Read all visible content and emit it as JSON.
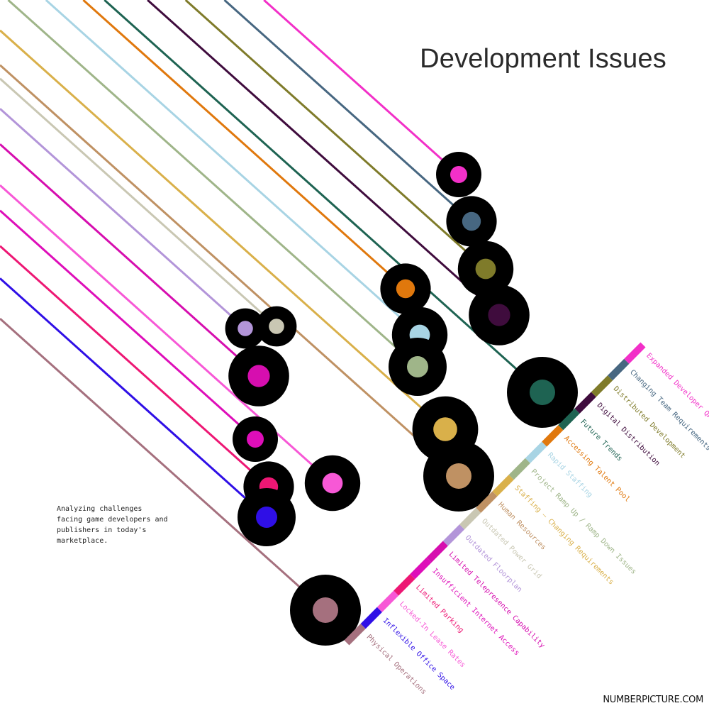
{
  "chart_data": {
    "type": "scatter",
    "title": "Development Issues",
    "subtitle": "Analyzing challenges facing game developers and publishers in today's marketplace.",
    "series": [
      {
        "name": "Expanded Developer QA",
        "color": "#f230c8",
        "magnitude": 0.5
      },
      {
        "name": "Changing Team Requirements",
        "color": "#476781",
        "magnitude": 0.6
      },
      {
        "name": "Distributed Development",
        "color": "#7f7b2a",
        "magnitude": 0.7
      },
      {
        "name": "Digital Distribution",
        "color": "#3f0c3d",
        "magnitude": 0.8
      },
      {
        "name": "Future Trends",
        "color": "#1e6352",
        "magnitude": 1.0
      },
      {
        "name": "Accessing Talent Pool",
        "color": "#e0780d",
        "magnitude": 0.6
      },
      {
        "name": "Rapid Staffing",
        "color": "#a8d4e4",
        "magnitude": 0.7
      },
      {
        "name": "Project Ramp Up / Ramp Down Issues",
        "color": "#9fb589",
        "magnitude": 0.75
      },
      {
        "name": "Staffing – Changing Requirements",
        "color": "#d9b04a",
        "magnitude": 0.9
      },
      {
        "name": "Human Resources",
        "color": "#bf9163",
        "magnitude": 1.0
      },
      {
        "name": "Outdated Power Grid",
        "color": "#c9c7b3",
        "magnitude": 0.4
      },
      {
        "name": "Outdated Floorplan",
        "color": "#b395d9",
        "magnitude": 0.4
      },
      {
        "name": "Limited Telepresence Capability",
        "color": "#d60eaf",
        "magnitude": 0.8
      },
      {
        "name": "Insufficient Internet Access",
        "color": "#de0eb9",
        "magnitude": 0.5
      },
      {
        "name": "Limited Parking",
        "color": "#ed1774",
        "magnitude": 0.6
      },
      {
        "name": "Locked-In Lease Rates",
        "color": "#f758d6",
        "magnitude": 0.7
      },
      {
        "name": "Inflexible Office Space",
        "color": "#2f0fe6",
        "magnitude": 0.75
      },
      {
        "name": "Physical Operations",
        "color": "#a5707e",
        "magnitude": 1.0
      }
    ]
  },
  "credit": "NUMBERPICTURE.COM"
}
